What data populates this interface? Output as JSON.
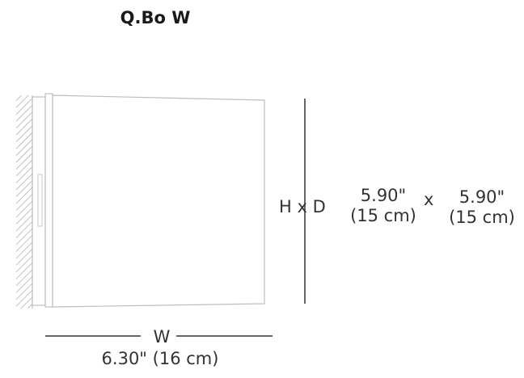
{
  "product": {
    "title": "Q.Bo W"
  },
  "dimensions": {
    "hd_label": "H x D",
    "depth_in": "5.90\"",
    "depth_cm": "(15 cm)",
    "times": "x",
    "height_in": "5.90\"",
    "height_cm": "(15 cm)",
    "width_label": "W",
    "width_value": "6.30\" (16 cm)"
  },
  "colors": {
    "outline": "#bdbdbd",
    "dimension_line": "#333333",
    "hatch": "#9a9a9a"
  }
}
